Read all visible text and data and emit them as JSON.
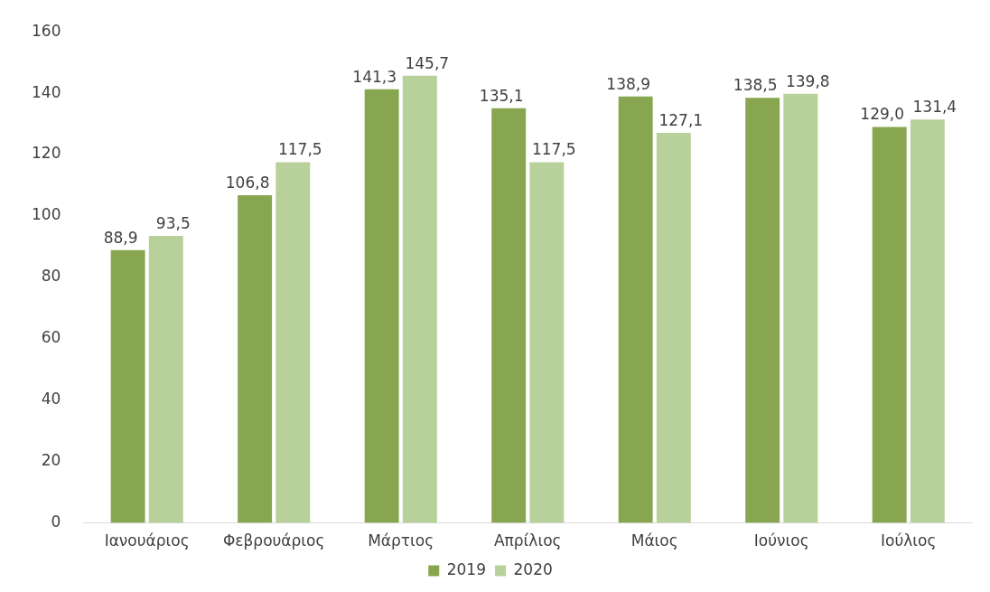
{
  "chart_data": {
    "type": "bar",
    "categories": [
      "Ιανουάριος",
      "Φεβρουάριος",
      "Μάρτιος",
      "Απρίλιος",
      "Μάιος",
      "Ιούνιος",
      "Ιούλιος"
    ],
    "series": [
      {
        "name": "2019",
        "color": "#88a64f",
        "values": [
          88.9,
          106.8,
          141.3,
          135.1,
          138.9,
          138.5,
          129.0
        ],
        "value_labels": [
          "88,9",
          "106,8",
          "141,3",
          "135,1",
          "138,9",
          "138,5",
          "129,0"
        ]
      },
      {
        "name": "2020",
        "color": "#b8d09a",
        "values": [
          93.5,
          117.5,
          145.7,
          117.5,
          127.1,
          139.8,
          131.4
        ],
        "value_labels": [
          "93,5",
          "117,5",
          "145,7",
          "117,5",
          "127,1",
          "139,8",
          "131,4"
        ]
      }
    ],
    "ylim": [
      0,
      160
    ],
    "yticks": [
      0,
      20,
      40,
      60,
      80,
      100,
      120,
      140,
      160
    ],
    "grid": false,
    "legend": "bottom"
  }
}
